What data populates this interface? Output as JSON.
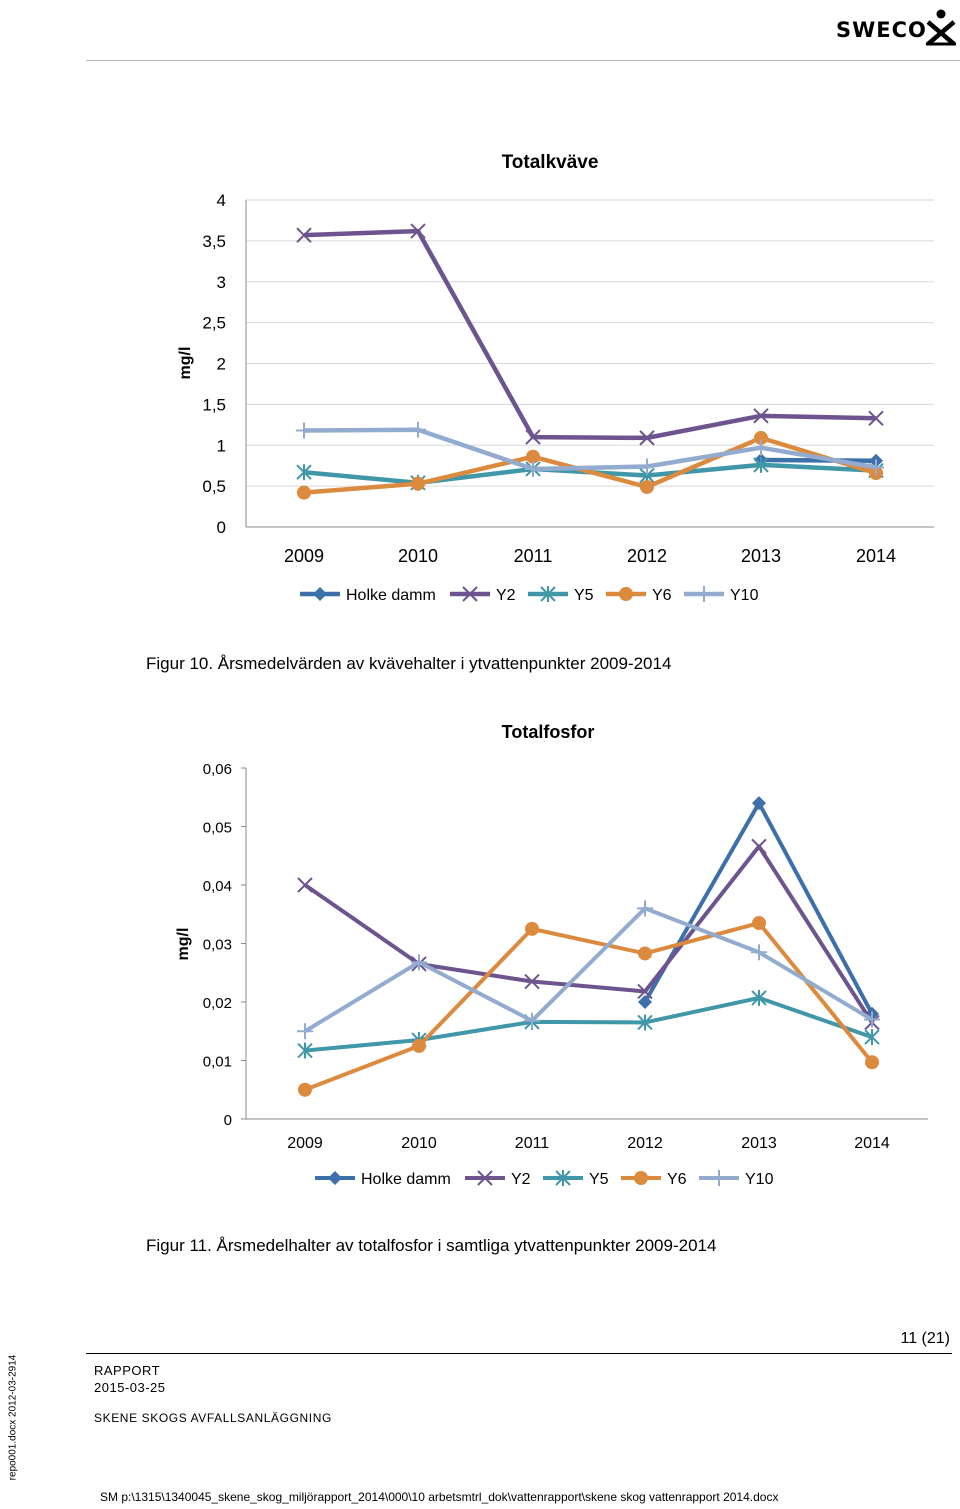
{
  "header": {
    "logo_text": "SWECO"
  },
  "chart_data": [
    {
      "type": "line",
      "title": "Totalkväve",
      "ylabel": "mg/l",
      "xlabel": "",
      "categories": [
        "2009",
        "2010",
        "2011",
        "2012",
        "2013",
        "2014"
      ],
      "ylim": [
        0,
        4
      ],
      "yticks": [
        "0",
        "0,5",
        "1",
        "1,5",
        "2",
        "2,5",
        "3",
        "3,5",
        "4"
      ],
      "grid": true,
      "legend_position": "bottom",
      "series": [
        {
          "name": "Holke damm",
          "color": "#3D6FAB",
          "marker": "diamond",
          "values": [
            null,
            null,
            null,
            null,
            0.82,
            0.81
          ]
        },
        {
          "name": "Y2",
          "color": "#6E548F",
          "marker": "x",
          "values": [
            3.57,
            3.62,
            1.1,
            1.09,
            1.36,
            1.33
          ]
        },
        {
          "name": "Y5",
          "color": "#3F97A8",
          "marker": "star",
          "values": [
            0.67,
            0.54,
            0.71,
            0.63,
            0.76,
            0.69
          ]
        },
        {
          "name": "Y6",
          "color": "#DB8A3E",
          "marker": "circle",
          "values": [
            0.42,
            0.53,
            0.86,
            0.49,
            1.09,
            0.66
          ]
        },
        {
          "name": "Y10",
          "color": "#93ABCF",
          "marker": "plus",
          "values": [
            1.18,
            1.19,
            0.71,
            0.74,
            0.97,
            0.73
          ]
        }
      ]
    },
    {
      "type": "line",
      "title": "Totalfosfor",
      "ylabel": "mg/l",
      "xlabel": "",
      "categories": [
        "2009",
        "2010",
        "2011",
        "2012",
        "2013",
        "2014"
      ],
      "ylim": [
        0,
        0.06
      ],
      "yticks": [
        "0",
        "0,01",
        "0,02",
        "0,03",
        "0,04",
        "0,05",
        "0,06"
      ],
      "grid": false,
      "legend_position": "bottom",
      "series": [
        {
          "name": "Holke damm",
          "color": "#3D6FAB",
          "marker": "diamond",
          "values": [
            null,
            null,
            null,
            0.02,
            0.054,
            0.018
          ]
        },
        {
          "name": "Y2",
          "color": "#6E548F",
          "marker": "x",
          "values": [
            0.04,
            0.0265,
            0.0235,
            0.0218,
            0.0466,
            0.0165
          ]
        },
        {
          "name": "Y5",
          "color": "#3F97A8",
          "marker": "star",
          "values": [
            0.0117,
            0.0135,
            0.0166,
            0.0165,
            0.0207,
            0.014
          ]
        },
        {
          "name": "Y6",
          "color": "#DB8A3E",
          "marker": "circle",
          "values": [
            0.005,
            0.0125,
            0.0325,
            0.0283,
            0.0335,
            0.0097
          ]
        },
        {
          "name": "Y10",
          "color": "#93ABCF",
          "marker": "plus",
          "values": [
            0.015,
            0.0268,
            0.0168,
            0.036,
            0.0285,
            0.017
          ]
        }
      ]
    }
  ],
  "captions": {
    "fig10": "Figur 10. Årsmedelvärden av kvävehalter i ytvattenpunkter 2009-2014",
    "fig11": "Figur 11. Årsmedelhalter av totalfosfor i samtliga ytvattenpunkter 2009-2014"
  },
  "footer": {
    "page_number": "11 (21)",
    "report_label": "RAPPORT",
    "date": "2015-03-25",
    "project": "SKENE SKOGS AVFALLSANLÄGGNING",
    "template_id": "repo001.docx 2012-03-2914",
    "file_path": "SM p:\\1315\\1340045_skene_skog_miljörapport_2014\\000\\10 arbetsmtrl_dok\\vattenrapport\\skene skog vattenrapport 2014.docx"
  }
}
